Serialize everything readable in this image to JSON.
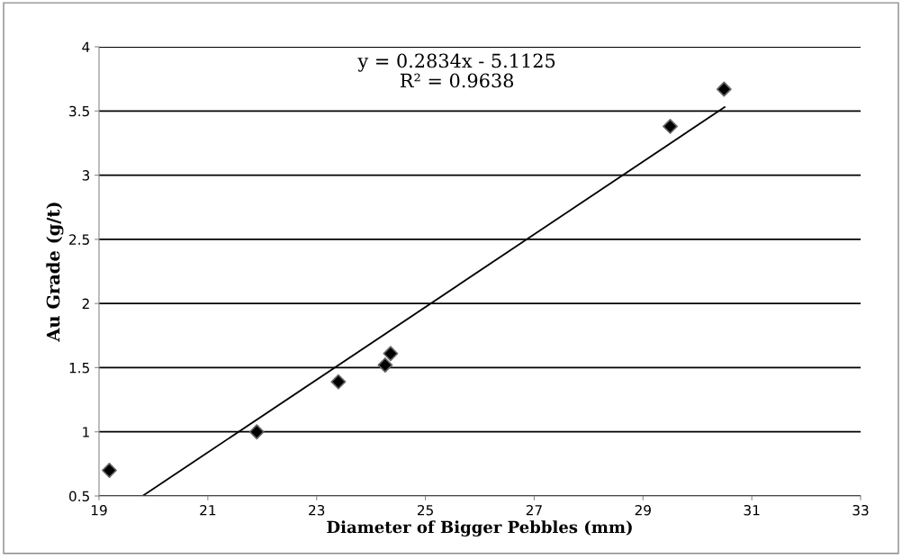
{
  "chart_data": {
    "type": "scatter",
    "xlabel": "Diameter of Bigger Pebbles (mm)",
    "ylabel": "Au Grade (g/t)",
    "annotations": [
      "y = 0.2834x - 5.1125\nR² = 0.9638"
    ],
    "series": [
      {
        "color": "#000000",
        "marker": "diamond",
        "x": [
          19.19,
          21.9,
          23.4,
          24.26,
          24.36,
          29.5,
          30.49
        ],
        "values": [
          0.7,
          1.0,
          1.39,
          1.52,
          1.61,
          3.38,
          3.67
        ]
      },
      {
        "type": "line",
        "color": "#000000",
        "marker": "none",
        "line_style": "solid",
        "x": [
          19.8,
          30.5
        ],
        "values": [
          0.5,
          3.53
        ]
      }
    ],
    "xlim": [
      19,
      33
    ],
    "xticks": [
      19,
      21,
      23,
      25,
      27,
      29,
      31,
      33
    ],
    "ylim": [
      0.5,
      4
    ],
    "yticks": [
      0.5,
      1,
      1.5,
      2,
      2.5,
      3,
      3.5,
      4
    ],
    "grid": "y",
    "legend": false
  }
}
